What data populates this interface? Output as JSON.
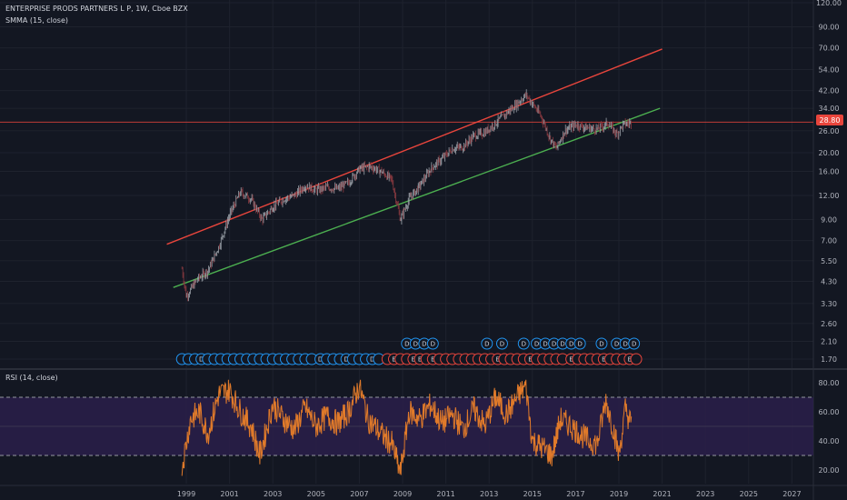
{
  "header": {
    "symbol_line": "ENTERPRISE PRODS PARTNERS L P, 1W, Cboe BZX",
    "indicator_line": "SMMA (15, close)"
  },
  "rsi": {
    "legend": "RSI (14, close)"
  },
  "price_badge": "28.80",
  "colors": {
    "background": "#131722",
    "candle_up": "#9aa0a8",
    "candle_down": "#8b3a40",
    "upper_line": "#e8453c",
    "lower_line": "#4caf50",
    "hline": "#e8453c",
    "rsi_line": "#e07a2a",
    "rsi_band": "#2a1f4a",
    "event_blue": "#2196f3",
    "event_red": "#e8453c"
  },
  "chart_data": [
    {
      "type": "candlestick",
      "scale": "log",
      "price_axis_ticks": [
        "120.00",
        "90.00",
        "70.00",
        "54.00",
        "42.00",
        "34.00",
        "28.80",
        "26.00",
        "20.00",
        "16.00",
        "12.00",
        "9.00",
        "7.00",
        "5.50",
        "4.30",
        "3.30",
        "2.60",
        "2.10",
        "1.70"
      ],
      "time_axis_ticks": [
        "1999",
        "2001",
        "2003",
        "2005",
        "2007",
        "2009",
        "2011",
        "2013",
        "2015",
        "2017",
        "2019",
        "2021",
        "2023",
        "2025",
        "2027"
      ],
      "last_price": 28.8,
      "approx_close_path": [
        {
          "x": 1998.8,
          "y": 5.0
        },
        {
          "x": 1999.0,
          "y": 3.6
        },
        {
          "x": 1999.5,
          "y": 4.4
        },
        {
          "x": 2000.0,
          "y": 4.9
        },
        {
          "x": 2000.5,
          "y": 6.5
        },
        {
          "x": 2001.0,
          "y": 9.5
        },
        {
          "x": 2001.5,
          "y": 12.5
        },
        {
          "x": 2002.0,
          "y": 11.5
        },
        {
          "x": 2002.5,
          "y": 9.0
        },
        {
          "x": 2003.0,
          "y": 10.5
        },
        {
          "x": 2003.5,
          "y": 11.5
        },
        {
          "x": 2004.0,
          "y": 12.0
        },
        {
          "x": 2004.5,
          "y": 13.5
        },
        {
          "x": 2005.0,
          "y": 12.8
        },
        {
          "x": 2005.5,
          "y": 13.2
        },
        {
          "x": 2006.0,
          "y": 13.0
        },
        {
          "x": 2006.5,
          "y": 14.0
        },
        {
          "x": 2007.0,
          "y": 16.5
        },
        {
          "x": 2007.5,
          "y": 17.0
        },
        {
          "x": 2008.0,
          "y": 16.0
        },
        {
          "x": 2008.5,
          "y": 14.5
        },
        {
          "x": 2008.9,
          "y": 9.0
        },
        {
          "x": 2009.3,
          "y": 11.5
        },
        {
          "x": 2009.8,
          "y": 13.5
        },
        {
          "x": 2010.3,
          "y": 16.5
        },
        {
          "x": 2010.8,
          "y": 18.5
        },
        {
          "x": 2011.3,
          "y": 21.0
        },
        {
          "x": 2011.8,
          "y": 21.5
        },
        {
          "x": 2012.3,
          "y": 24.5
        },
        {
          "x": 2012.8,
          "y": 25.5
        },
        {
          "x": 2013.3,
          "y": 28.5
        },
        {
          "x": 2013.8,
          "y": 32.0
        },
        {
          "x": 2014.3,
          "y": 36.0
        },
        {
          "x": 2014.7,
          "y": 40.0
        },
        {
          "x": 2015.0,
          "y": 36.0
        },
        {
          "x": 2015.4,
          "y": 31.0
        },
        {
          "x": 2015.8,
          "y": 24.0
        },
        {
          "x": 2016.1,
          "y": 21.0
        },
        {
          "x": 2016.5,
          "y": 26.0
        },
        {
          "x": 2017.0,
          "y": 28.0
        },
        {
          "x": 2017.5,
          "y": 27.0
        },
        {
          "x": 2018.0,
          "y": 26.5
        },
        {
          "x": 2018.5,
          "y": 28.5
        },
        {
          "x": 2018.9,
          "y": 25.0
        },
        {
          "x": 2019.2,
          "y": 28.0
        },
        {
          "x": 2019.6,
          "y": 28.8
        }
      ],
      "trendlines": [
        {
          "name": "upper",
          "from": {
            "x": 1998.1,
            "y": 6.7
          },
          "to": {
            "x": 2021.0,
            "y": 69.0
          }
        },
        {
          "name": "lower",
          "from": {
            "x": 1998.4,
            "y": 4.0
          },
          "to": {
            "x": 2020.9,
            "y": 34.0
          }
        }
      ],
      "horizontal_line": 28.8
    },
    {
      "type": "line",
      "title": "RSI (14, close)",
      "rsi_axis_ticks": [
        "80.00",
        "60.00",
        "40.00",
        "20.00"
      ],
      "upper_band": 70,
      "lower_band": 30,
      "approx_values": [
        {
          "x": 1998.8,
          "y": 22
        },
        {
          "x": 1999.2,
          "y": 55
        },
        {
          "x": 1999.6,
          "y": 60
        },
        {
          "x": 2000.0,
          "y": 45
        },
        {
          "x": 2000.5,
          "y": 72
        },
        {
          "x": 2001.0,
          "y": 75
        },
        {
          "x": 2001.5,
          "y": 60
        },
        {
          "x": 2002.0,
          "y": 50
        },
        {
          "x": 2002.4,
          "y": 30
        },
        {
          "x": 2003.0,
          "y": 65
        },
        {
          "x": 2003.5,
          "y": 55
        },
        {
          "x": 2004.0,
          "y": 48
        },
        {
          "x": 2004.5,
          "y": 63
        },
        {
          "x": 2005.0,
          "y": 50
        },
        {
          "x": 2005.5,
          "y": 57
        },
        {
          "x": 2006.0,
          "y": 52
        },
        {
          "x": 2006.5,
          "y": 60
        },
        {
          "x": 2007.0,
          "y": 78
        },
        {
          "x": 2007.4,
          "y": 55
        },
        {
          "x": 2008.0,
          "y": 45
        },
        {
          "x": 2008.5,
          "y": 38
        },
        {
          "x": 2008.9,
          "y": 18
        },
        {
          "x": 2009.3,
          "y": 60
        },
        {
          "x": 2009.8,
          "y": 55
        },
        {
          "x": 2010.3,
          "y": 65
        },
        {
          "x": 2010.8,
          "y": 52
        },
        {
          "x": 2011.3,
          "y": 58
        },
        {
          "x": 2011.8,
          "y": 48
        },
        {
          "x": 2012.3,
          "y": 62
        },
        {
          "x": 2012.8,
          "y": 50
        },
        {
          "x": 2013.3,
          "y": 70
        },
        {
          "x": 2013.8,
          "y": 58
        },
        {
          "x": 2014.3,
          "y": 70
        },
        {
          "x": 2014.7,
          "y": 78
        },
        {
          "x": 2015.0,
          "y": 40
        },
        {
          "x": 2015.5,
          "y": 35
        },
        {
          "x": 2015.9,
          "y": 30
        },
        {
          "x": 2016.3,
          "y": 55
        },
        {
          "x": 2016.8,
          "y": 50
        },
        {
          "x": 2017.2,
          "y": 45
        },
        {
          "x": 2017.6,
          "y": 40
        },
        {
          "x": 2018.0,
          "y": 38
        },
        {
          "x": 2018.4,
          "y": 68
        },
        {
          "x": 2018.8,
          "y": 45
        },
        {
          "x": 2019.0,
          "y": 30
        },
        {
          "x": 2019.3,
          "y": 62
        },
        {
          "x": 2019.6,
          "y": 50
        }
      ]
    }
  ],
  "events": {
    "row_upper": [
      {
        "x": 2009.2,
        "label": "D",
        "color": "blue"
      },
      {
        "x": 2009.6,
        "label": "D",
        "color": "blue"
      },
      {
        "x": 2010.0,
        "label": "D",
        "color": "blue"
      },
      {
        "x": 2010.4,
        "label": "D",
        "color": "blue"
      },
      {
        "x": 2012.9,
        "label": "D",
        "color": "blue"
      },
      {
        "x": 2013.6,
        "label": "D",
        "color": "blue"
      },
      {
        "x": 2014.6,
        "label": "D",
        "color": "blue"
      },
      {
        "x": 2015.2,
        "label": "D",
        "color": "blue"
      },
      {
        "x": 2015.6,
        "label": "D",
        "color": "blue"
      },
      {
        "x": 2016.0,
        "label": "D",
        "color": "blue"
      },
      {
        "x": 2016.4,
        "label": "D",
        "color": "blue"
      },
      {
        "x": 2016.8,
        "label": "D",
        "color": "blue"
      },
      {
        "x": 2017.2,
        "label": "D",
        "color": "blue"
      },
      {
        "x": 2018.2,
        "label": "D",
        "color": "blue"
      },
      {
        "x": 2018.9,
        "label": "D",
        "color": "blue"
      },
      {
        "x": 2019.3,
        "label": "D",
        "color": "blue"
      },
      {
        "x": 2019.7,
        "label": "D",
        "color": "blue"
      }
    ],
    "row_lower": [
      {
        "x": 1998.8,
        "label": "",
        "color": "blue"
      },
      {
        "x": 1999.1,
        "label": "",
        "color": "blue"
      },
      {
        "x": 1999.4,
        "label": "",
        "color": "blue"
      },
      {
        "x": 1999.7,
        "label": "D",
        "color": "blue"
      },
      {
        "x": 2000.0,
        "label": "",
        "color": "blue"
      },
      {
        "x": 2000.3,
        "label": "",
        "color": "blue"
      },
      {
        "x": 2000.6,
        "label": "",
        "color": "blue"
      },
      {
        "x": 2000.9,
        "label": "",
        "color": "blue"
      },
      {
        "x": 2001.2,
        "label": "",
        "color": "blue"
      },
      {
        "x": 2001.5,
        "label": "",
        "color": "blue"
      },
      {
        "x": 2001.8,
        "label": "",
        "color": "blue"
      },
      {
        "x": 2002.1,
        "label": "",
        "color": "blue"
      },
      {
        "x": 2002.4,
        "label": "",
        "color": "blue"
      },
      {
        "x": 2002.7,
        "label": "",
        "color": "blue"
      },
      {
        "x": 2003.0,
        "label": "",
        "color": "blue"
      },
      {
        "x": 2003.3,
        "label": "",
        "color": "blue"
      },
      {
        "x": 2003.6,
        "label": "",
        "color": "blue"
      },
      {
        "x": 2003.9,
        "label": "",
        "color": "blue"
      },
      {
        "x": 2004.2,
        "label": "",
        "color": "blue"
      },
      {
        "x": 2004.5,
        "label": "",
        "color": "blue"
      },
      {
        "x": 2004.8,
        "label": "",
        "color": "blue"
      },
      {
        "x": 2005.2,
        "label": "D",
        "color": "blue"
      },
      {
        "x": 2005.5,
        "label": "",
        "color": "blue"
      },
      {
        "x": 2005.8,
        "label": "",
        "color": "blue"
      },
      {
        "x": 2006.1,
        "label": "",
        "color": "blue"
      },
      {
        "x": 2006.4,
        "label": "D",
        "color": "blue"
      },
      {
        "x": 2006.7,
        "label": "",
        "color": "blue"
      },
      {
        "x": 2007.0,
        "label": "",
        "color": "blue"
      },
      {
        "x": 2007.3,
        "label": "",
        "color": "blue"
      },
      {
        "x": 2007.6,
        "label": "D",
        "color": "blue"
      },
      {
        "x": 2007.9,
        "label": "",
        "color": "blue"
      },
      {
        "x": 2008.3,
        "label": "",
        "color": "red"
      },
      {
        "x": 2008.6,
        "label": "E",
        "color": "red"
      },
      {
        "x": 2008.9,
        "label": "",
        "color": "red"
      },
      {
        "x": 2009.2,
        "label": "",
        "color": "red"
      },
      {
        "x": 2009.5,
        "label": "E",
        "color": "red"
      },
      {
        "x": 2009.8,
        "label": "E",
        "color": "red"
      },
      {
        "x": 2010.1,
        "label": "",
        "color": "red"
      },
      {
        "x": 2010.4,
        "label": "E",
        "color": "red"
      },
      {
        "x": 2010.7,
        "label": "",
        "color": "red"
      },
      {
        "x": 2011.0,
        "label": "",
        "color": "red"
      },
      {
        "x": 2011.3,
        "label": "",
        "color": "red"
      },
      {
        "x": 2011.6,
        "label": "",
        "color": "red"
      },
      {
        "x": 2011.9,
        "label": "",
        "color": "red"
      },
      {
        "x": 2012.2,
        "label": "",
        "color": "red"
      },
      {
        "x": 2012.5,
        "label": "",
        "color": "red"
      },
      {
        "x": 2012.8,
        "label": "",
        "color": "red"
      },
      {
        "x": 2013.1,
        "label": "",
        "color": "red"
      },
      {
        "x": 2013.4,
        "label": "E",
        "color": "red"
      },
      {
        "x": 2013.7,
        "label": "",
        "color": "red"
      },
      {
        "x": 2014.0,
        "label": "",
        "color": "red"
      },
      {
        "x": 2014.3,
        "label": "",
        "color": "red"
      },
      {
        "x": 2014.6,
        "label": "",
        "color": "red"
      },
      {
        "x": 2014.9,
        "label": "E",
        "color": "red"
      },
      {
        "x": 2015.2,
        "label": "",
        "color": "red"
      },
      {
        "x": 2015.5,
        "label": "",
        "color": "red"
      },
      {
        "x": 2015.8,
        "label": "",
        "color": "red"
      },
      {
        "x": 2016.1,
        "label": "",
        "color": "red"
      },
      {
        "x": 2016.4,
        "label": "",
        "color": "red"
      },
      {
        "x": 2016.8,
        "label": "E",
        "color": "red"
      },
      {
        "x": 2017.1,
        "label": "",
        "color": "red"
      },
      {
        "x": 2017.4,
        "label": "",
        "color": "red"
      },
      {
        "x": 2017.7,
        "label": "",
        "color": "red"
      },
      {
        "x": 2018.0,
        "label": "",
        "color": "red"
      },
      {
        "x": 2018.3,
        "label": "E",
        "color": "red"
      },
      {
        "x": 2018.6,
        "label": "",
        "color": "red"
      },
      {
        "x": 2018.9,
        "label": "",
        "color": "red"
      },
      {
        "x": 2019.2,
        "label": "",
        "color": "red"
      },
      {
        "x": 2019.5,
        "label": "E",
        "color": "red"
      },
      {
        "x": 2019.8,
        "label": "",
        "color": "red"
      }
    ]
  }
}
